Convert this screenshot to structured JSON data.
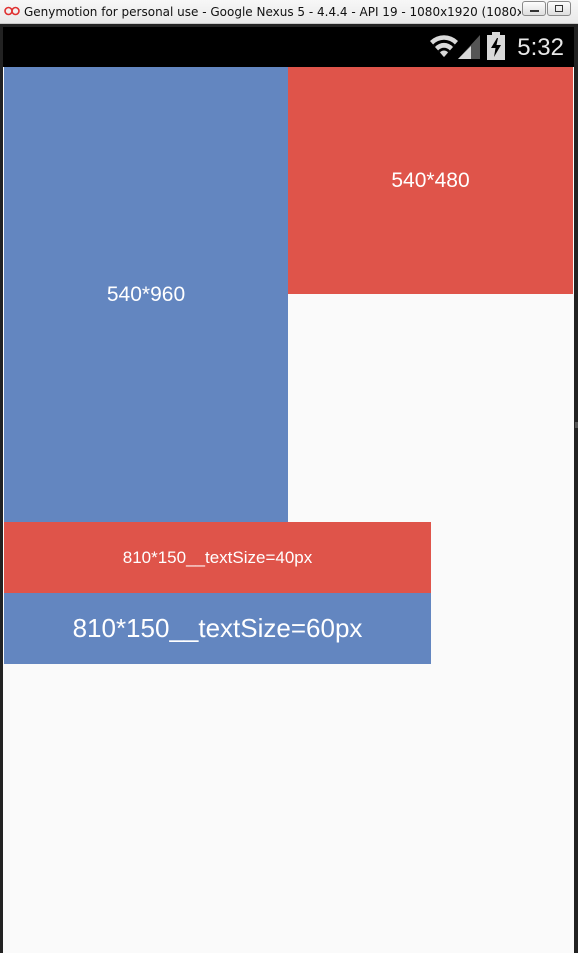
{
  "window": {
    "title": "Genymotion for personal use - Google Nexus 5 - 4.4.4 - API 19 - 1080x1920 (1080x1...",
    "app_icon": "genymotion-logo-icon",
    "controls": {
      "minimize_icon": "minimize-icon",
      "maximize_icon": "maximize-icon"
    }
  },
  "statusbar": {
    "time": "5:32",
    "icons": [
      "wifi-icon",
      "signal-icon",
      "battery-charging-icon"
    ]
  },
  "boxes": {
    "tall": "540*960",
    "half": "540*480",
    "wide_small_text": "810*150__textSize=40px",
    "wide_large_text": "810*150__textSize=60px"
  },
  "colors": {
    "blue": "#6386c0",
    "red": "#df544a",
    "background": "#fafafa",
    "statusbar": "#000000"
  }
}
